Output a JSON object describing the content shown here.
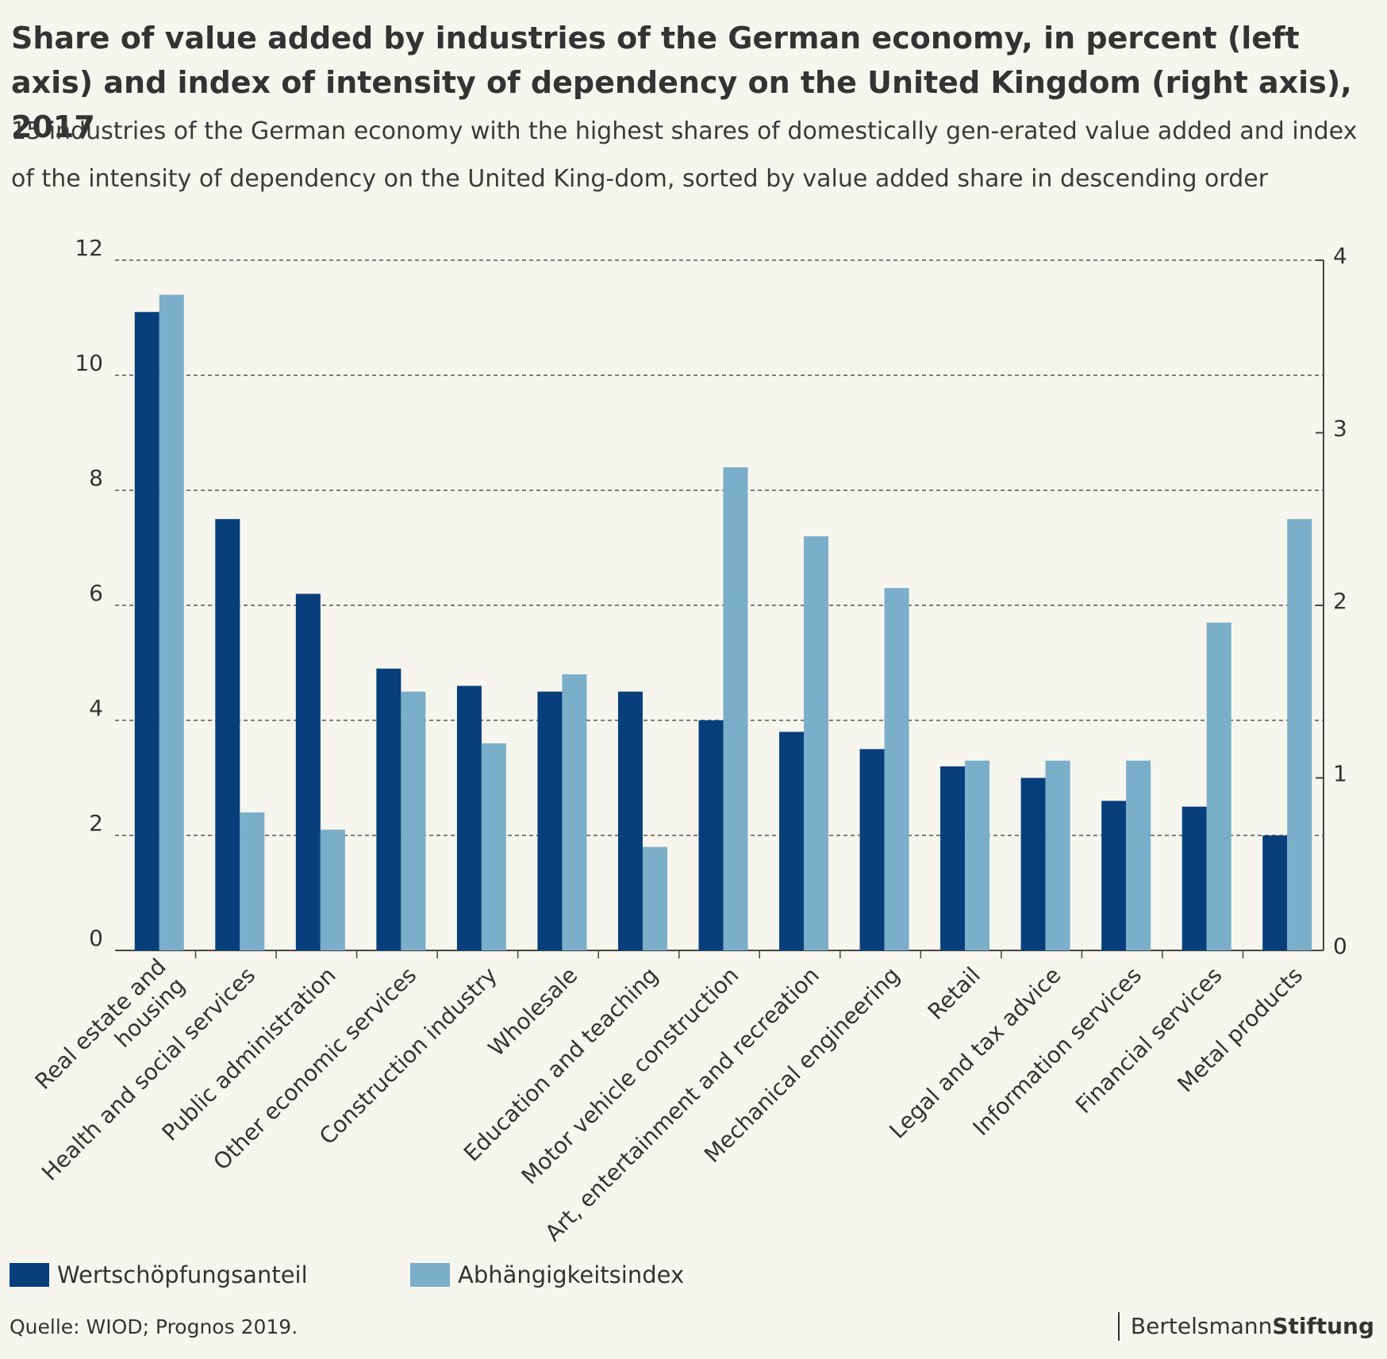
{
  "title": "Share of value added by industries of the German economy, in percent (left axis) and index of intensity of dependency on the United Kingdom (right axis), 2017",
  "subtitle": "15 industries of the German economy with the highest shares of domestically gen-erated value added and index of the intensity of dependency on the United King-dom, sorted by value added share in descending order",
  "source": "Quelle: WIOD; Prognos 2019.",
  "logo": {
    "part1": "Bertelsmann",
    "part2": "Stiftung"
  },
  "colors": {
    "value_added": "#073f7c",
    "dependency": "#7aaec9",
    "background": "#f7f6ee",
    "grid": "#555555"
  },
  "chart_data": {
    "type": "bar",
    "categories": [
      "Real estate and housing",
      "Health and social services",
      "Public administration",
      "Other economic services",
      "Construction industry",
      "Wholesale",
      "Education and teaching",
      "Motor vehicle construction",
      "Art, entertainment and recreation",
      "Mechanical engineering",
      "Retail",
      "Legal and tax advice",
      "Information services",
      "Financial services",
      "Metal products"
    ],
    "category_label_lines": [
      [
        "Real estate and",
        "housing"
      ],
      [
        "Health and social services"
      ],
      [
        "Public administration"
      ],
      [
        "Other economic services"
      ],
      [
        "Construction industry"
      ],
      [
        "Wholesale"
      ],
      [
        "Education and teaching"
      ],
      [
        "Motor vehicle construction"
      ],
      [
        "Art, entertainment and recreation"
      ],
      [
        "Mechanical engineering"
      ],
      [
        "Retail"
      ],
      [
        "Legal and tax advice"
      ],
      [
        "Information services"
      ],
      [
        "Financial services"
      ],
      [
        "Metal products"
      ]
    ],
    "series": [
      {
        "name": "Wertschöpfungsanteil",
        "axis": "left",
        "values": [
          11.1,
          7.5,
          6.2,
          4.9,
          4.6,
          4.5,
          4.5,
          4.0,
          3.8,
          3.5,
          3.2,
          3.0,
          2.6,
          2.5,
          2.0
        ]
      },
      {
        "name": "Abhängigkeitsindex",
        "axis": "right",
        "values": [
          3.8,
          0.8,
          0.7,
          1.5,
          1.2,
          1.6,
          0.6,
          2.8,
          2.4,
          2.1,
          1.1,
          1.1,
          1.1,
          1.9,
          2.5
        ]
      }
    ],
    "ylim_left": [
      0,
      12
    ],
    "yticks_left": [
      0,
      2,
      4,
      6,
      8,
      10,
      12
    ],
    "ylim_right": [
      0,
      4
    ],
    "yticks_right": [
      0,
      1,
      2,
      3,
      4
    ],
    "grid": "dashed horizontal at left-axis ticks",
    "legend": "bottom-left"
  }
}
